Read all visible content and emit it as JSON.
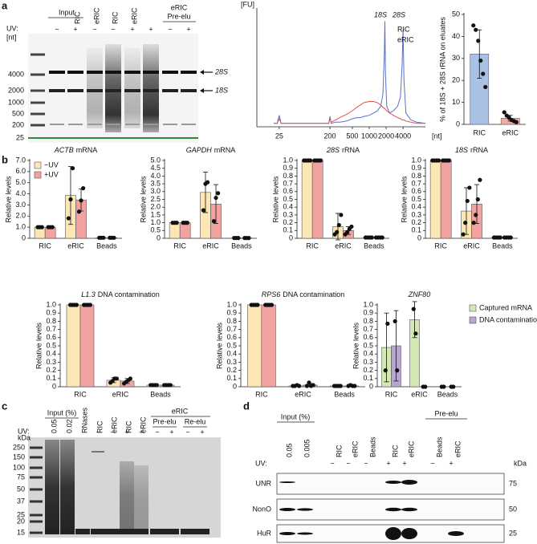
{
  "panel_labels": [
    "a",
    "b",
    "c",
    "d"
  ],
  "gel_a": {
    "unit": "[nt]",
    "input_label": "Input",
    "lane_labels": [
      "RIC",
      "eRIC",
      "RIC",
      "eRIC"
    ],
    "group_label": "eRIC",
    "group_sub": "Pre-elu",
    "uv_label": "UV:",
    "uv": [
      "−",
      "+",
      "−",
      "−",
      "+",
      "+",
      "−",
      "+"
    ],
    "size_markers": [
      "4000",
      "2000",
      "1000",
      "500",
      "200",
      "25"
    ],
    "bands": [
      "28S",
      "18S"
    ]
  },
  "chart_data": [
    {
      "type": "line",
      "y_unit": "[FU]",
      "x_unit": "[nt]",
      "xscale": "log",
      "xlim": [
        10,
        10000
      ],
      "xticks": [
        25,
        200,
        500,
        1000,
        2000,
        4000
      ],
      "ylim": [
        0,
        100
      ],
      "annotations": [
        "18S",
        "28S"
      ],
      "x": [
        20,
        23,
        25,
        27,
        30,
        50,
        100,
        150,
        190,
        200,
        210,
        250,
        300,
        400,
        500,
        600,
        700,
        800,
        1000,
        1200,
        1400,
        1600,
        1750,
        1850,
        1900,
        1950,
        2050,
        2300,
        2700,
        3200,
        3600,
        3850,
        4000,
        4150,
        4500,
        5500,
        7000,
        10000
      ],
      "series": [
        {
          "name": "RIC",
          "color": "#5a6fc8",
          "values": [
            3,
            3,
            10,
            3,
            3,
            3,
            3,
            3,
            3,
            9,
            3,
            4,
            4,
            5,
            7,
            8,
            8,
            9,
            10,
            12,
            14,
            18,
            28,
            60,
            92,
            45,
            18,
            12,
            14,
            18,
            26,
            55,
            85,
            40,
            12,
            6,
            4,
            3
          ]
        },
        {
          "name": "eRIC",
          "color": "#e0524e",
          "values": [
            3,
            3,
            7,
            3,
            3,
            3,
            3,
            3,
            3,
            7,
            4,
            6,
            8,
            11,
            14,
            17,
            19,
            21,
            22,
            22,
            21,
            19,
            17,
            16,
            16,
            15,
            14,
            12,
            10,
            8,
            7,
            6,
            6,
            6,
            5,
            4,
            3,
            3
          ]
        }
      ]
    },
    {
      "type": "bar",
      "y_label": "% of 18S + 28S rRNA on eluates",
      "categories": [
        "RIC",
        "eRIC"
      ],
      "values": [
        32,
        2.8
      ],
      "errors": [
        11,
        1.3
      ],
      "colors": [
        "#a9c1e4",
        "#f2aaa5"
      ],
      "points": [
        [
          45,
          43,
          38,
          29,
          23,
          17
        ],
        [
          5.5,
          4,
          3,
          2,
          1.5,
          1
        ]
      ],
      "ylim": [
        0,
        50
      ],
      "yticks": [
        0,
        10,
        20,
        30,
        40,
        50
      ]
    },
    {
      "type": "grouped_bar",
      "title": [
        "ACTB",
        "mRNA"
      ],
      "y_label": "Relative levels",
      "categories": [
        "RIC",
        "eRIC",
        "Beads"
      ],
      "legend": "top-left",
      "ylim": [
        0,
        7
      ],
      "yticks": [
        0,
        {
          "value": 1,
          "label": "1.0"
        },
        {
          "value": 2,
          "label": "2.0"
        },
        {
          "value": 3,
          "label": "3.0"
        },
        {
          "value": 4,
          "label": "4.0"
        },
        {
          "value": 5,
          "label": "5.0"
        },
        {
          "value": 6,
          "label": "6.0"
        },
        {
          "value": 7,
          "label": "7.0"
        }
      ],
      "series": [
        {
          "name": "−UV",
          "color": "#fce6b4",
          "values": [
            1,
            3.85,
            0.05
          ],
          "errors": [
            0,
            2.6,
            0
          ],
          "points": [
            [
              1,
              1,
              1
            ],
            [
              1.8,
              3.5,
              6.3
            ],
            [
              0.05,
              0.05,
              0.05
            ]
          ]
        },
        {
          "name": "+UV",
          "color": "#f2a3a0",
          "values": [
            1,
            3.45,
            0.05
          ],
          "errors": [
            0,
            1,
            0
          ],
          "points": [
            [
              1,
              1,
              1
            ],
            [
              2.4,
              3.4,
              4.5
            ],
            [
              0.05,
              0.05,
              0.05
            ]
          ]
        }
      ]
    },
    {
      "type": "grouped_bar",
      "title": [
        "GAPDH",
        "mRNA"
      ],
      "y_label": "Relative levels",
      "categories": [
        "RIC",
        "eRIC",
        "Beads"
      ],
      "ylim": [
        0,
        5
      ],
      "yticks": [
        0,
        0.5,
        {
          "value": 1,
          "label": "1.0"
        },
        1.5,
        {
          "value": 2,
          "label": "2.0"
        },
        2.5,
        {
          "value": 3,
          "label": "3.0"
        },
        3.5,
        {
          "value": 4,
          "label": "4.0"
        },
        4.5,
        {
          "value": 5,
          "label": "5.0"
        }
      ],
      "series": [
        {
          "color": "#fce6b4",
          "values": [
            1,
            2.95,
            0.02
          ],
          "errors": [
            0,
            1.3,
            0
          ],
          "points": [
            [
              1,
              1,
              1
            ],
            [
              1.8,
              3.5,
              3.6
            ],
            [
              0.02,
              0.02,
              0.02
            ]
          ]
        },
        {
          "color": "#f2a3a0",
          "values": [
            1,
            2.2,
            0.02
          ],
          "errors": [
            0,
            1.25,
            0
          ],
          "points": [
            [
              1,
              1,
              1
            ],
            [
              1.1,
              2.6,
              2.9
            ],
            [
              0.02,
              0.02,
              0.02
            ]
          ]
        }
      ]
    },
    {
      "type": "grouped_bar",
      "title": [
        "28S",
        "rRNA"
      ],
      "y_label": "Relative levels",
      "categories": [
        "RIC",
        "eRIC",
        "Beads"
      ],
      "ylim": [
        0,
        1
      ],
      "yticks": [
        0,
        0.1,
        0.2,
        0.3,
        0.4,
        0.5,
        0.6,
        0.7,
        0.8,
        0.9,
        {
          "value": 1,
          "label": "1.0"
        }
      ],
      "series": [
        {
          "color": "#fce6b4",
          "values": [
            1,
            0.15,
            0.01
          ],
          "errors": [
            0,
            0.17,
            0
          ],
          "points": [
            [
              1,
              1,
              1,
              1
            ],
            [
              0.05,
              0.08,
              0.17,
              0.3
            ],
            [
              0.01,
              0.01,
              0.01,
              0.01
            ]
          ]
        },
        {
          "color": "#f2a3a0",
          "values": [
            1,
            0.1,
            0.01
          ],
          "errors": [
            0,
            0.05,
            0
          ],
          "points": [
            [
              1,
              1,
              1,
              1
            ],
            [
              0.05,
              0.08,
              0.12,
              0.15
            ],
            [
              0.01,
              0.01,
              0.01,
              0.01
            ]
          ]
        }
      ]
    },
    {
      "type": "grouped_bar",
      "title": [
        "18S",
        "rRNA"
      ],
      "y_label": "Relative levels",
      "categories": [
        "RIC",
        "eRIC",
        "Beads"
      ],
      "ylim": [
        0,
        1
      ],
      "yticks": [
        0,
        0.1,
        0.2,
        0.3,
        0.4,
        0.5,
        0.6,
        0.7,
        0.8,
        0.9,
        {
          "value": 1,
          "label": "1.0"
        }
      ],
      "series": [
        {
          "color": "#fce6b4",
          "values": [
            1,
            0.35,
            0.01
          ],
          "errors": [
            0,
            0.3,
            0
          ],
          "points": [
            [
              1,
              1,
              1,
              1
            ],
            [
              0.05,
              0.2,
              0.48,
              0.65
            ],
            [
              0.01,
              0.01,
              0.01,
              0.01
            ]
          ]
        },
        {
          "color": "#f2a3a0",
          "values": [
            1,
            0.44,
            0.01
          ],
          "errors": [
            0,
            0.25,
            0
          ],
          "points": [
            [
              1,
              1,
              1,
              1
            ],
            [
              0.2,
              0.3,
              0.5,
              0.75
            ],
            [
              0.01,
              0.01,
              0.01,
              0.01
            ]
          ]
        }
      ]
    },
    {
      "type": "grouped_bar",
      "title": [
        "L1.3",
        "DNA contamination"
      ],
      "y_label": "Relative levels",
      "categories": [
        "RIC",
        "eRIC",
        "Beads"
      ],
      "ylim": [
        0,
        1
      ],
      "yticks": [
        0,
        0.1,
        0.2,
        0.3,
        0.4,
        0.5,
        0.6,
        0.7,
        0.8,
        0.9,
        {
          "value": 1,
          "label": "1.0"
        }
      ],
      "series": [
        {
          "color": "#fce6b4",
          "values": [
            1,
            0.08,
            0.02
          ],
          "errors": [
            0,
            0.03,
            0
          ],
          "points": [
            [
              1,
              1,
              1,
              1
            ],
            [
              0.05,
              0.07,
              0.1,
              0.1
            ],
            [
              0.02,
              0.02,
              0.02,
              0.02
            ]
          ]
        },
        {
          "color": "#f2a3a0",
          "values": [
            1,
            0.07,
            0.02
          ],
          "errors": [
            0,
            0.03,
            0
          ],
          "points": [
            [
              1,
              1,
              1,
              1
            ],
            [
              0.04,
              0.06,
              0.08,
              0.1
            ],
            [
              0.02,
              0.02,
              0.02,
              0.02
            ]
          ]
        }
      ]
    },
    {
      "type": "grouped_bar",
      "title": [
        "RPS6",
        "DNA contamination"
      ],
      "y_label": "Relative levels",
      "categories": [
        "RIC",
        "eRIC",
        "Beads"
      ],
      "ylim": [
        0,
        1
      ],
      "yticks": [
        0,
        0.1,
        0.2,
        0.3,
        0.4,
        0.5,
        0.6,
        0.7,
        0.8,
        0.9,
        {
          "value": 1,
          "label": "1.0"
        }
      ],
      "series": [
        {
          "color": "#fce6b4",
          "values": [
            1,
            0.01,
            0.01
          ],
          "errors": [
            0,
            0,
            0
          ],
          "points": [
            [
              1,
              1,
              1,
              1
            ],
            [
              0.01,
              0.01,
              0.02,
              0.01
            ],
            [
              0.01,
              0.01,
              0.01,
              0.01
            ]
          ]
        },
        {
          "color": "#f2a3a0",
          "values": [
            1,
            0.02,
            0.01
          ],
          "errors": [
            0,
            0.02,
            0
          ],
          "points": [
            [
              1,
              1,
              1,
              1
            ],
            [
              0.01,
              0.05,
              0.01,
              0.02
            ],
            [
              0.01,
              0.02,
              0.01,
              0.01
            ]
          ]
        }
      ]
    },
    {
      "type": "grouped_bar",
      "title": [
        "ZNF80"
      ],
      "y_label": "Relative levels",
      "categories": [
        "RIC",
        "eRIC",
        "Beads"
      ],
      "legend": "right",
      "ylim": [
        0,
        1
      ],
      "yticks": [
        0,
        0.1,
        0.2,
        0.3,
        0.4,
        0.5,
        0.6,
        0.7,
        0.8,
        0.9,
        {
          "value": 1,
          "label": "1.0"
        }
      ],
      "series": [
        {
          "name": "Captured mRNA",
          "color": "#d4e8b3",
          "values": [
            0.48,
            0.82,
            0
          ],
          "errors": [
            0.42,
            0.22,
            0
          ],
          "points": [
            [
              0.2,
              0.77
            ],
            [
              0.95,
              0.65
            ],
            [
              0,
              0
            ]
          ]
        },
        {
          "name": "DNA contamination",
          "color": "#b7a6ce",
          "values": [
            0.5,
            0,
            0
          ],
          "errors": [
            0.43,
            0,
            0
          ],
          "points": [
            [
              0.8,
              0.2
            ],
            [
              0,
              0
            ],
            [
              0,
              0
            ]
          ]
        }
      ]
    }
  ],
  "gel_c": {
    "input_label": "Input (%)",
    "lanes": [
      "0.05",
      "0.02",
      "RNases",
      "RIC",
      "eRIC",
      "RIC",
      "eRIC"
    ],
    "group_label": "eRIC",
    "subgroups": [
      "Pre-elu",
      "Re-elu"
    ],
    "uv_label": "UV:",
    "uv": [
      "−",
      "−",
      "+",
      "+",
      "−",
      "+",
      "−",
      "+"
    ],
    "kda_label": "kDa",
    "kda": [
      "250",
      "150",
      "100",
      "75",
      "50",
      "37",
      "25",
      "20",
      "15"
    ]
  },
  "blot_d": {
    "input_label": "Input (%)",
    "lanes": [
      "0.05",
      "0.005",
      "RIC",
      "eRIC",
      "Beads",
      "RIC",
      "eRIC",
      "Beads",
      "eRIC"
    ],
    "group_label": "Pre-elu",
    "uv_label": "UV:",
    "uv": [
      "−",
      "−",
      "−",
      "+",
      "+",
      "−",
      "+"
    ],
    "kda_label": "kDa",
    "proteins": [
      "UNR",
      "NonO",
      "HuR"
    ],
    "kda": [
      "75",
      "50",
      "25"
    ]
  }
}
